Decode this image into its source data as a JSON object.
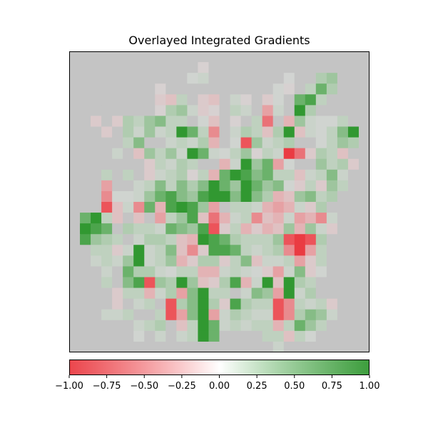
{
  "chart_data": {
    "type": "heatmap",
    "title": "Overlayed Integrated Gradients",
    "colormap": {
      "negative_color": "#e8252d",
      "zero_color": "#ffffff",
      "positive_color": "#1a8c1a",
      "background_gray": "#c4c4c4"
    },
    "grid_rows": 28,
    "grid_cols": 28,
    "colorbar": {
      "min": -1.0,
      "max": 1.0,
      "ticks": [
        -1.0,
        -0.75,
        -0.5,
        -0.25,
        0.0,
        0.25,
        0.5,
        0.75,
        1.0
      ],
      "tick_labels": [
        "−1.00",
        "−0.75",
        "−0.50",
        "−0.25",
        "0.00",
        "0.25",
        "0.50",
        "0.75",
        "1.00"
      ]
    },
    "attributions": [
      [
        0,
        0,
        0,
        0,
        0,
        0,
        0,
        0,
        0,
        0,
        0,
        0,
        0,
        0,
        0,
        0,
        0,
        0,
        0,
        0,
        0,
        0,
        0,
        0,
        0,
        0,
        0,
        0
      ],
      [
        0,
        0,
        0,
        0,
        0,
        0,
        0,
        0,
        0,
        0,
        0,
        0,
        -0.1,
        0,
        0,
        0,
        0,
        0,
        0,
        0,
        0,
        0,
        0,
        0,
        0,
        0,
        0,
        0
      ],
      [
        0,
        0,
        0,
        0,
        0,
        0,
        0,
        0,
        0,
        0,
        0,
        0.1,
        0.2,
        0,
        0,
        0,
        0,
        0,
        0,
        0,
        0.05,
        0,
        0,
        0.4,
        0.5,
        0,
        0,
        0
      ],
      [
        0,
        0,
        0,
        0,
        0,
        0,
        0,
        0,
        -0.1,
        0,
        0,
        0,
        0,
        0,
        0,
        0,
        0,
        0,
        0,
        0.1,
        -0.1,
        0,
        0.3,
        0.7,
        0.4,
        0,
        0,
        0
      ],
      [
        0,
        0,
        0,
        0,
        0,
        0,
        0,
        0,
        -0.2,
        -0.3,
        0.3,
        0,
        -0.2,
        -0.3,
        0,
        0.2,
        -0.1,
        0,
        -0.2,
        0.1,
        0,
        0.7,
        0.8,
        0.3,
        0,
        0,
        0,
        0
      ],
      [
        0,
        0,
        0,
        0,
        0,
        0,
        0,
        0,
        -0.1,
        0.4,
        0.5,
        0.2,
        -0.2,
        -0.1,
        0,
        0.3,
        0.2,
        0,
        -0.5,
        0.2,
        0,
        0.9,
        0.4,
        0,
        0,
        0,
        0,
        0
      ],
      [
        0,
        0,
        -0.2,
        0,
        -0.2,
        0.4,
        0.3,
        0.5,
        0.6,
        0.3,
        0.3,
        0,
        0.1,
        -0.3,
        0,
        -0.1,
        0,
        0.3,
        -0.7,
        0,
        -0.4,
        0.5,
        0.2,
        0.1,
        0.1,
        0.3,
        0,
        0
      ],
      [
        0,
        0,
        0,
        -0.2,
        0,
        0.4,
        0.2,
        0.5,
        0.2,
        0.3,
        0.9,
        0.7,
        0.3,
        -0.6,
        0,
        0.2,
        0.4,
        0.3,
        -0.3,
        0.4,
        0.9,
        -0.3,
        0.2,
        0.1,
        0.3,
        0.6,
        0.9,
        0
      ],
      [
        0,
        0,
        0,
        0,
        0,
        0.3,
        0.6,
        0,
        0,
        0.2,
        0.3,
        0.2,
        0.4,
        -0.4,
        0,
        0.1,
        -0.8,
        0.5,
        0.2,
        0.3,
        0.4,
        0,
        0,
        0.1,
        0.3,
        0.5,
        0.4,
        0
      ],
      [
        0,
        0,
        0,
        0,
        0.2,
        0,
        -0.3,
        0.5,
        0.3,
        0.5,
        0.2,
        0.9,
        0.7,
        0.2,
        0.1,
        0.3,
        0.5,
        -0.1,
        0.3,
        0.2,
        -0.9,
        -0.7,
        -0.2,
        0.4,
        0.3,
        -0.3,
        0,
        0
      ],
      [
        0,
        0,
        0,
        0,
        0,
        0,
        0,
        -0.2,
        0.3,
        0.2,
        0.4,
        0.3,
        0,
        0,
        -0.4,
        0.2,
        0.9,
        0.5,
        0.7,
        -0.5,
        0.1,
        0,
        0,
        0.5,
        0.3,
        0.4,
        -0.2,
        0
      ],
      [
        0,
        0,
        0,
        0.3,
        0,
        0.3,
        0,
        -0.2,
        0.2,
        0.3,
        0.4,
        -0.1,
        0.3,
        -0.4,
        0.7,
        0.9,
        0.8,
        0.6,
        0.7,
        0.3,
        0.3,
        -0.3,
        0.2,
        0.3,
        0.6,
        0.2,
        0,
        0
      ],
      [
        0,
        0,
        0,
        -0.5,
        0,
        0,
        0.2,
        0.3,
        0.6,
        0.3,
        0.6,
        0.4,
        0.6,
        0.9,
        0.7,
        0.5,
        0.9,
        0.7,
        0.5,
        0.6,
        0.1,
        -0.2,
        0.3,
        -0.2,
        0.5,
        0.3,
        0,
        0
      ],
      [
        0,
        0,
        0,
        -0.6,
        0.1,
        0.1,
        0.2,
        0.5,
        0.7,
        0.8,
        0.6,
        0.5,
        0.8,
        0.9,
        0.9,
        0.6,
        0.9,
        0.6,
        0.4,
        -0.4,
        -0.3,
        0.5,
        0.6,
        0.3,
        0.4,
        0,
        0,
        0
      ],
      [
        0,
        0,
        0,
        -0.8,
        -0.3,
        0.2,
        -0.6,
        0.7,
        -0.4,
        0.8,
        0.9,
        0.8,
        0.5,
        -0.5,
        0,
        0.3,
        0.3,
        0.2,
        -0.4,
        -0.5,
        -0.4,
        0.2,
        -0.2,
        0.4,
        0,
        0,
        0,
        0
      ],
      [
        0,
        0.7,
        0.9,
        0.3,
        -0.3,
        0,
        -0.3,
        0,
        -0.5,
        0.3,
        0.5,
        0.8,
        -0.3,
        -0.7,
        -0.4,
        0.2,
        0.3,
        -0.6,
        -0.3,
        -0.4,
        0.2,
        -0.5,
        -0.4,
        -0.6,
        0.2,
        0,
        0,
        0
      ],
      [
        0,
        0.9,
        0.8,
        0.7,
        0,
        0.4,
        0.3,
        0.3,
        0.2,
        0.7,
        0.6,
        0.5,
        0.8,
        -0.8,
        -0.2,
        0.3,
        -0.4,
        -0.2,
        -0.4,
        -0.3,
        0.5,
        -0.4,
        0.5,
        0.2,
        -0.2,
        0,
        0,
        0
      ],
      [
        0,
        0.8,
        0.5,
        0.4,
        0.3,
        0,
        0.2,
        0.4,
        0.4,
        0.3,
        -0.3,
        -0.4,
        0.9,
        0.8,
        0.7,
        0.4,
        0.3,
        0.3,
        0.3,
        0.5,
        -0.8,
        -0.9,
        -0.8,
        0.4,
        0,
        0,
        0,
        0
      ],
      [
        0,
        0,
        0.3,
        0.3,
        -0.2,
        0.2,
        0.9,
        0.2,
        0.3,
        0.6,
        -0.3,
        -0.6,
        -0.2,
        0.8,
        0.8,
        0.7,
        0.3,
        0.2,
        0.3,
        0.4,
        -0.6,
        -0.9,
        -0.5,
        0.3,
        0,
        0,
        0,
        0
      ],
      [
        0,
        0,
        0.2,
        0.3,
        0.2,
        0.5,
        0.9,
        0.2,
        0.3,
        0.5,
        -0.4,
        -0.2,
        0.4,
        0.4,
        -0.2,
        0.3,
        0.6,
        -0.3,
        0.2,
        0.2,
        0.3,
        -0.5,
        -0.2,
        0.3,
        0,
        0,
        0,
        0
      ],
      [
        0,
        0,
        0,
        0.2,
        0,
        0.7,
        0.4,
        0.4,
        0.2,
        0.1,
        0.3,
        0.3,
        -0.4,
        -0.4,
        0.2,
        0.3,
        0.2,
        0.1,
        -0.2,
        -0.5,
        0.2,
        0.6,
        -0.2,
        0.1,
        0,
        0,
        0,
        0
      ],
      [
        0,
        0,
        0,
        0.3,
        0,
        0.6,
        0.8,
        -0.8,
        0.5,
        0.4,
        0.9,
        0.5,
        -0.3,
        -0.2,
        0.4,
        0.8,
        -0.4,
        0.2,
        0.9,
        -0.3,
        0.9,
        0.4,
        0.3,
        0,
        0,
        0,
        0,
        0
      ],
      [
        0,
        0,
        0,
        0,
        -0.2,
        0.3,
        0.3,
        -0.4,
        0.2,
        0.4,
        -0.5,
        0.6,
        0.9,
        0.3,
        0.3,
        0,
        0.2,
        0.6,
        0.5,
        -0.5,
        0.9,
        0.2,
        0.4,
        0,
        0,
        0,
        0,
        0
      ],
      [
        0,
        0,
        0,
        0,
        -0.2,
        0,
        0.2,
        0.3,
        0,
        -0.8,
        0.4,
        0.6,
        0.9,
        0.4,
        -0.2,
        0.8,
        0.4,
        0.3,
        0.3,
        -0.8,
        -0.6,
        0.3,
        0.2,
        0.3,
        -0.2,
        0,
        0,
        0
      ],
      [
        0,
        0,
        0,
        0.2,
        0.2,
        0.3,
        0,
        0,
        0.3,
        -0.8,
        -0.5,
        0.6,
        0.9,
        -0.5,
        0.2,
        0.4,
        0.3,
        0.2,
        0.2,
        -0.8,
        -0.6,
        0.4,
        0.6,
        0.5,
        0.2,
        0,
        0,
        0
      ],
      [
        0,
        0,
        0,
        0,
        0,
        0,
        0.2,
        0.3,
        0.4,
        0,
        -0.3,
        0.3,
        0.9,
        0.7,
        0.2,
        0.3,
        0.2,
        0.3,
        0.3,
        -0.4,
        0.3,
        0.7,
        0.5,
        0.3,
        0,
        0,
        0,
        0
      ],
      [
        0,
        0,
        0,
        0,
        0,
        0,
        0.1,
        0,
        0.2,
        0,
        0.2,
        0.3,
        0.9,
        0.7,
        0,
        0,
        0,
        0,
        0.3,
        0.3,
        -0.3,
        0.3,
        0.1,
        0,
        0,
        0,
        0,
        0
      ],
      [
        0,
        0,
        0,
        0,
        0,
        0,
        0,
        0,
        0,
        0,
        0,
        0,
        0,
        0,
        0,
        0,
        0,
        0,
        0,
        0.2,
        0,
        0,
        0,
        0,
        0,
        0,
        0,
        0
      ]
    ]
  }
}
